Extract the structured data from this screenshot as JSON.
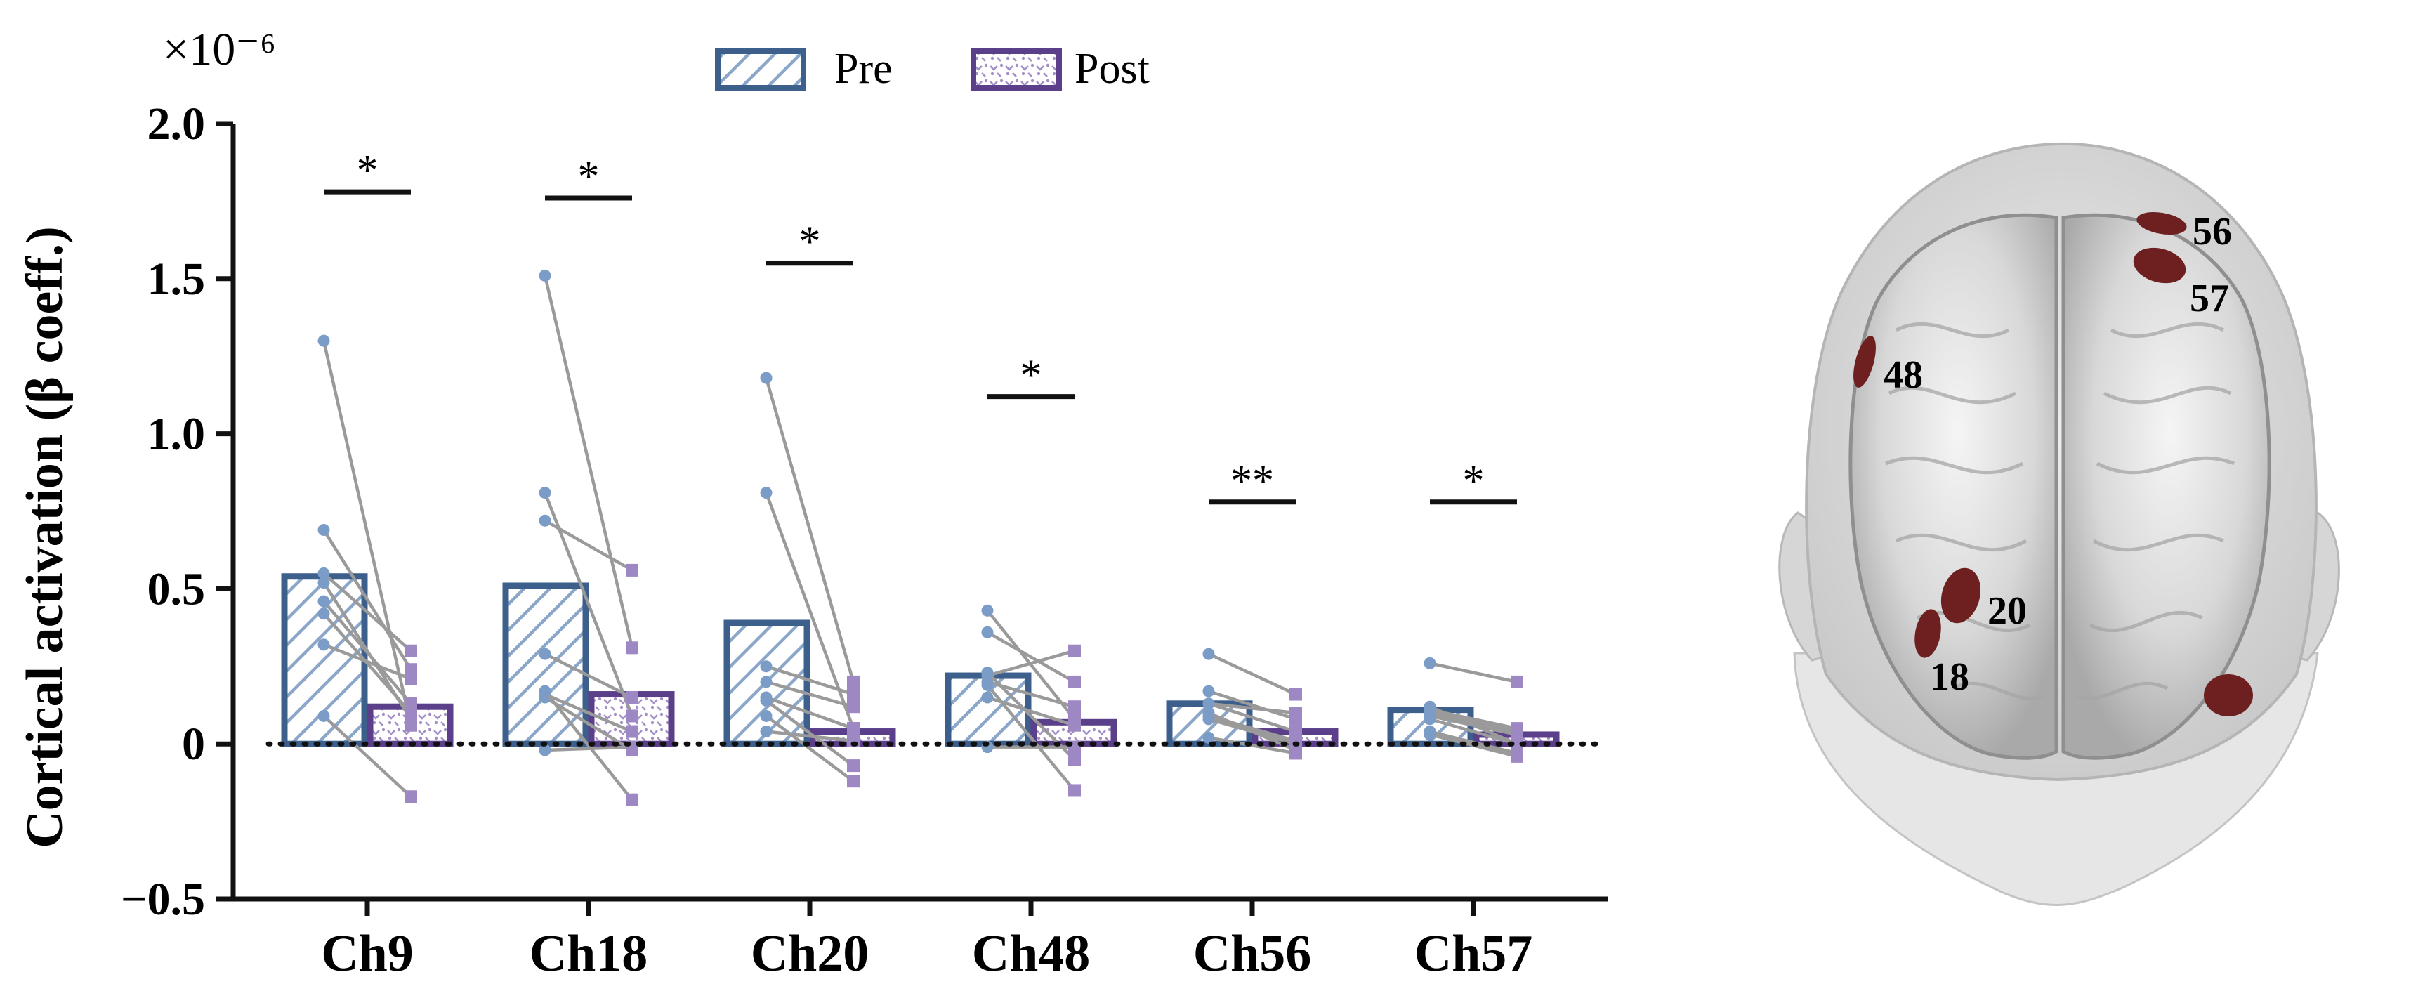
{
  "chart_data": {
    "type": "bar",
    "ylabel": "Cortical activation (β coeff.)",
    "exponent_label": "×10⁻⁶",
    "ylim": [
      -0.5,
      2.0
    ],
    "yticks": [
      -0.5,
      0,
      0.5,
      1.0,
      1.5,
      2.0
    ],
    "ytick_labels": [
      "−0.5",
      "0",
      "0.5",
      "1.0",
      "1.5",
      "2.0"
    ],
    "categories": [
      "Ch9",
      "Ch18",
      "Ch20",
      "Ch48",
      "Ch56",
      "Ch57"
    ],
    "series": [
      {
        "name": "Pre",
        "values": [
          0.54,
          0.51,
          0.39,
          0.22,
          0.13,
          0.11
        ],
        "color": "#3d5f8c",
        "pattern": "diagonal-hatch"
      },
      {
        "name": "Post",
        "values": [
          0.12,
          0.16,
          0.04,
          0.07,
          0.04,
          0.03
        ],
        "color": "#5b3f8a",
        "pattern": "dotted-zigzag"
      }
    ],
    "subjects": [
      {
        "pre": [
          1.3,
          0.81,
          0.81,
          0.22,
          0.13,
          0.11
        ],
        "post": [
          0.06,
          0.09,
          0.05,
          0.3,
          0.04,
          0.05
        ]
      },
      {
        "pre": [
          0.69,
          1.51,
          1.18,
          0.43,
          0.29,
          0.26
        ],
        "post": [
          0.24,
          0.31,
          0.2,
          0.08,
          0.16,
          0.2
        ]
      },
      {
        "pre": [
          0.55,
          0.72,
          0.25,
          0.36,
          0.17,
          0.09
        ],
        "post": [
          0.3,
          0.56,
          0.16,
          0.2,
          0.08,
          0.03
        ]
      },
      {
        "pre": [
          0.52,
          0.29,
          0.2,
          0.15,
          0.13,
          0.1
        ],
        "post": [
          0.08,
          0.15,
          0.12,
          0.06,
          0.1,
          0.04
        ]
      },
      {
        "pre": [
          0.46,
          0.16,
          0.15,
          0.2,
          0.09,
          0.08
        ],
        "post": [
          0.13,
          0.04,
          0.05,
          0.12,
          0.01,
          0.0
        ]
      },
      {
        "pre": [
          0.42,
          0.15,
          0.14,
          0.23,
          0.08,
          0.04
        ],
        "post": [
          0.1,
          -0.02,
          -0.07,
          -0.05,
          0.0,
          -0.03
        ]
      },
      {
        "pre": [
          0.32,
          -0.02,
          0.04,
          -0.01,
          0.02,
          0.03
        ],
        "post": [
          0.21,
          -0.01,
          0.01,
          -0.01,
          -0.03,
          -0.04
        ]
      },
      {
        "pre": [
          0.09,
          0.17,
          0.09,
          0.19,
          0.1,
          0.12
        ],
        "post": [
          -0.17,
          -0.18,
          -0.12,
          -0.15,
          -0.02,
          0.0
        ]
      }
    ],
    "significance": [
      {
        "category": "Ch9",
        "label": "*",
        "y": 1.78
      },
      {
        "category": "Ch18",
        "label": "*",
        "y": 1.76
      },
      {
        "category": "Ch20",
        "label": "*",
        "y": 1.55
      },
      {
        "category": "Ch48",
        "label": "*",
        "y": 1.12
      },
      {
        "category": "Ch56",
        "label": "**",
        "y": 0.78
      },
      {
        "category": "Ch57",
        "label": "*",
        "y": 0.78
      }
    ],
    "legend": {
      "placement": "top-center",
      "entries": [
        "Pre",
        "Post"
      ]
    },
    "zero_line": "dotted"
  },
  "brain": {
    "channels": [
      "56",
      "57",
      "48",
      "20",
      "18"
    ],
    "marker_color": "#6e1f1f"
  }
}
